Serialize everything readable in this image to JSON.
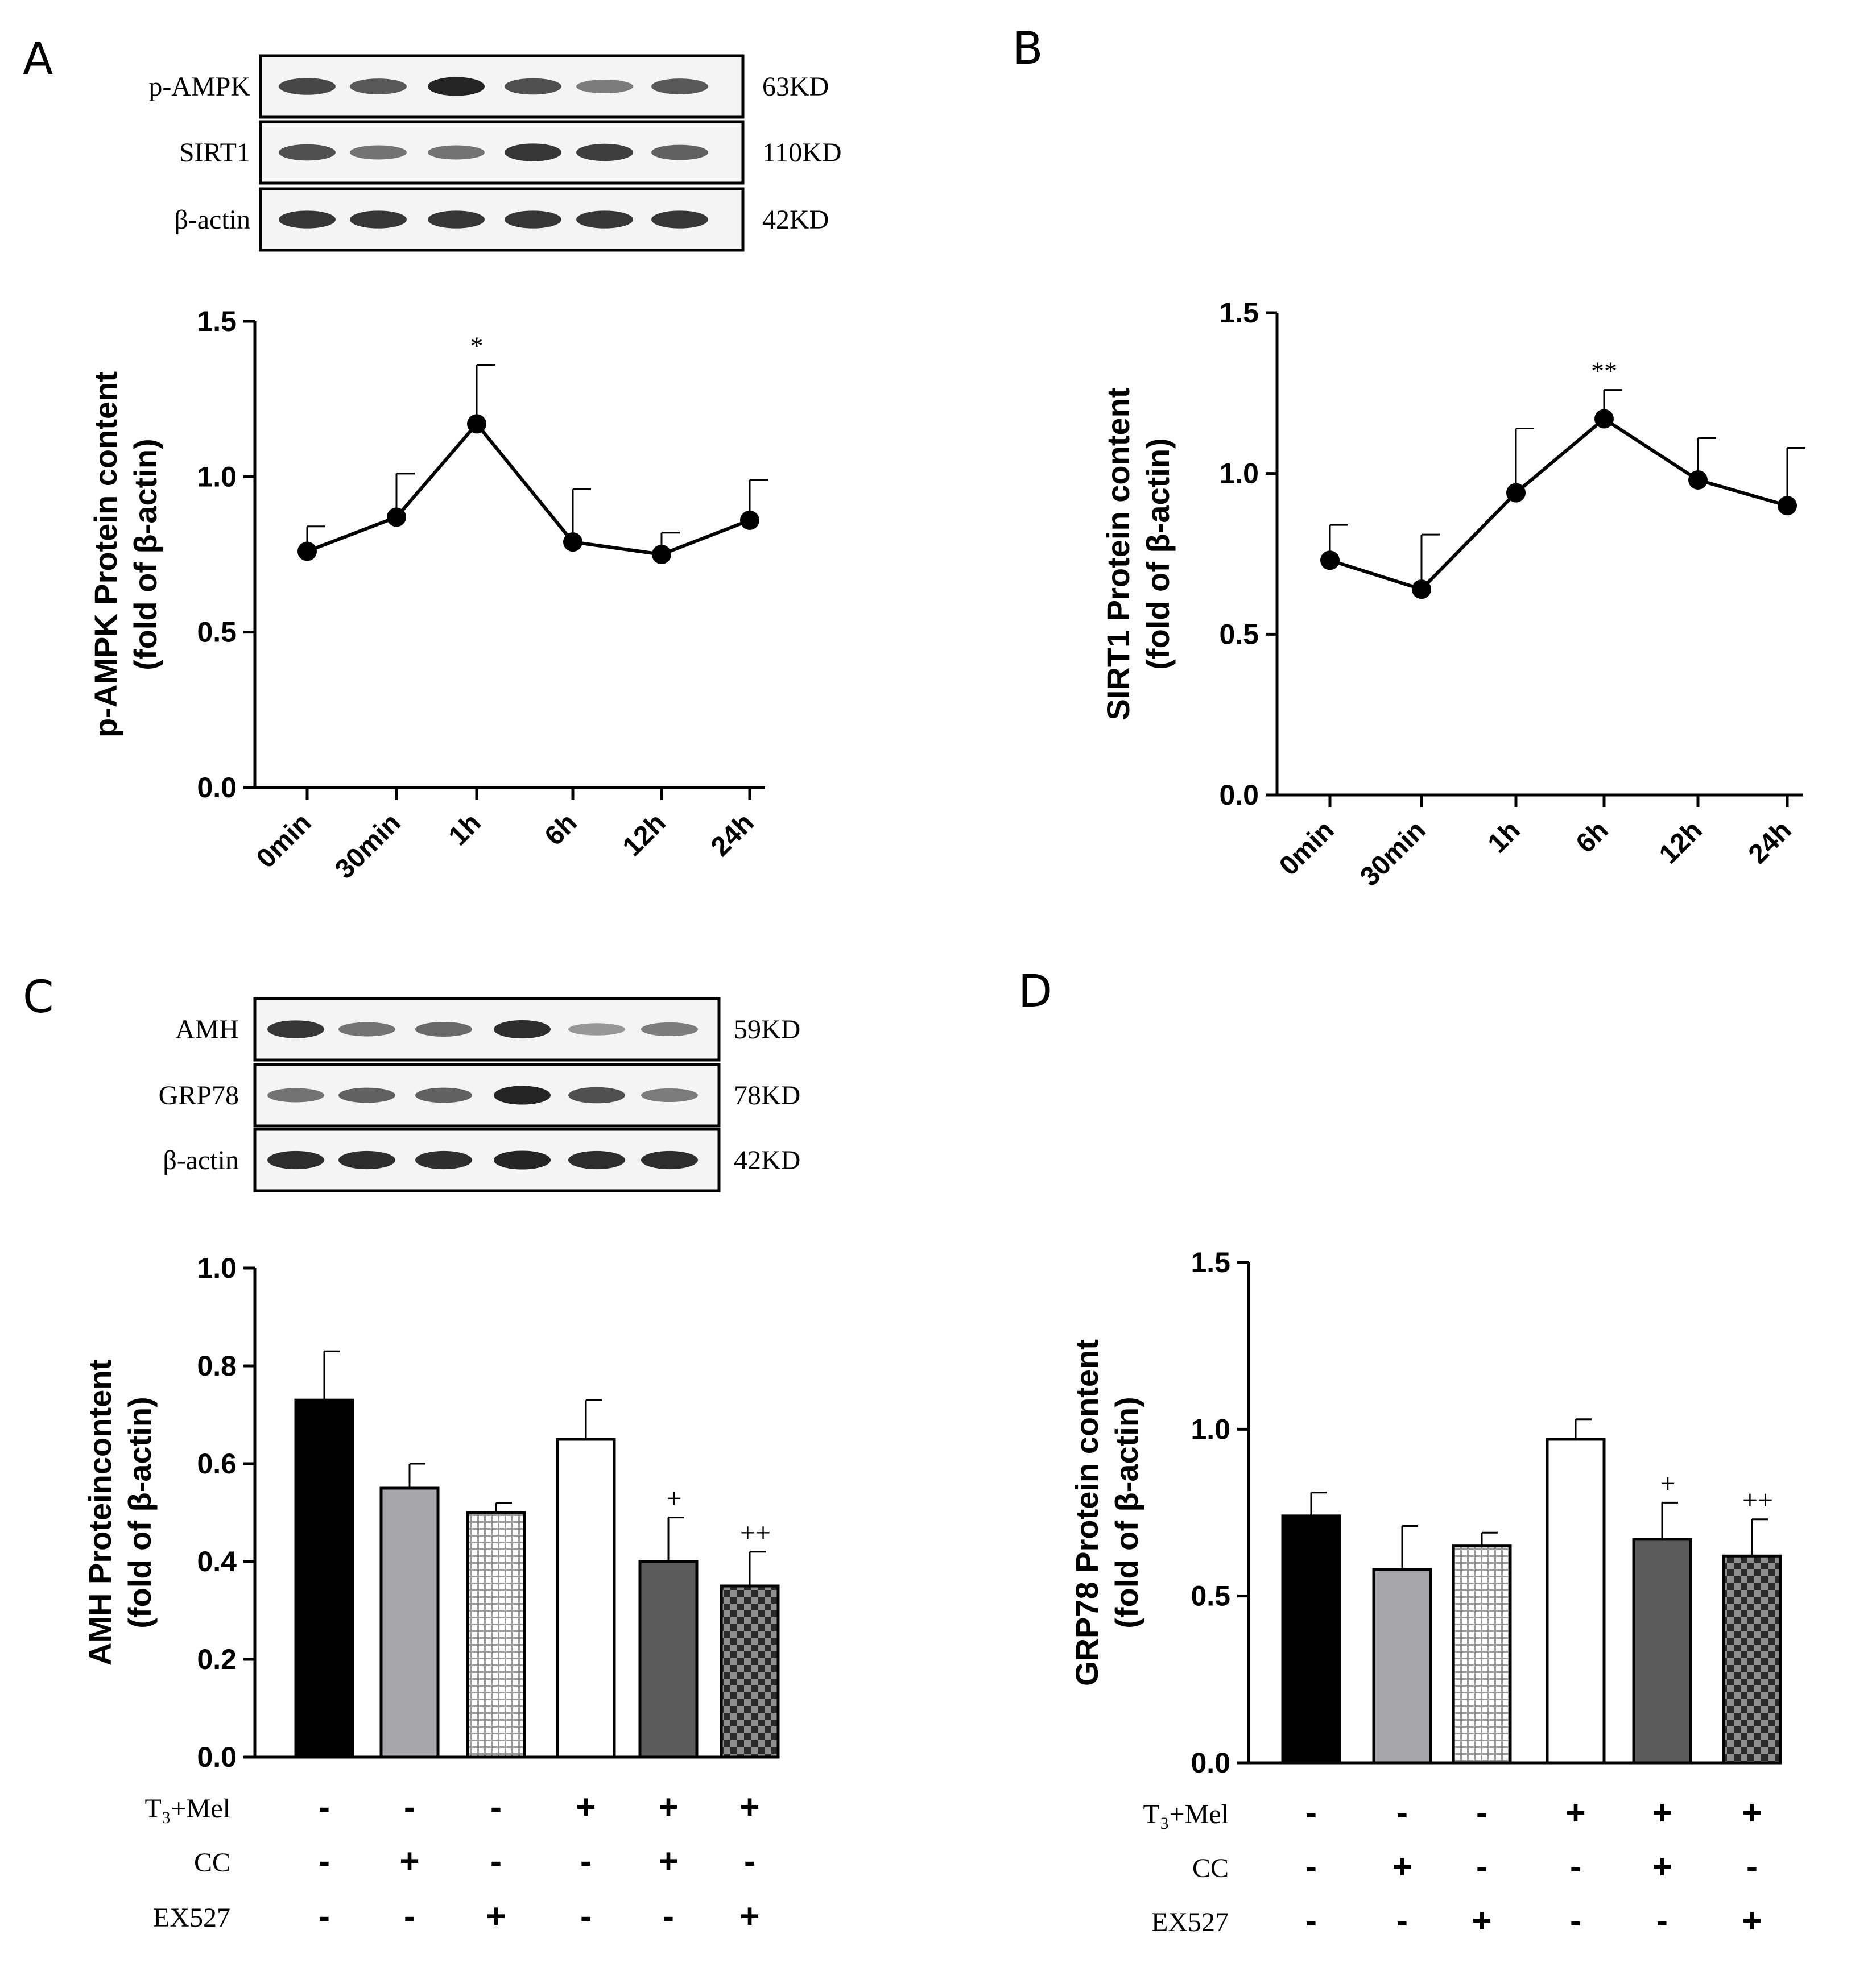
{
  "colors": {
    "black": "#000000",
    "gray": "#a7a7ab",
    "dark_gray": "#5b5b5b",
    "white": "#ffffff",
    "blot_bg": "#f4f4f4",
    "blot_band": "#1a1a1a"
  },
  "panels": {
    "A": "A",
    "B": "B",
    "C": "C",
    "D": "D"
  },
  "blots": [
    {
      "id": "A",
      "rows": [
        {
          "label": "p-AMPK",
          "kd": "63KD",
          "intensity": [
            0.75,
            0.65,
            0.95,
            0.7,
            0.45,
            0.65
          ]
        },
        {
          "label": "SIRT1",
          "kd": "110KD",
          "intensity": [
            0.7,
            0.5,
            0.5,
            0.85,
            0.8,
            0.6
          ]
        },
        {
          "label": "β-actin",
          "kd": "42KD",
          "intensity": [
            0.85,
            0.85,
            0.85,
            0.85,
            0.85,
            0.85
          ]
        }
      ]
    },
    {
      "id": "C",
      "rows": [
        {
          "label": "AMH",
          "kd": "59KD",
          "intensity": [
            0.85,
            0.5,
            0.55,
            0.9,
            0.3,
            0.45
          ]
        },
        {
          "label": "GRP78",
          "kd": "78KD",
          "intensity": [
            0.5,
            0.6,
            0.6,
            0.95,
            0.7,
            0.45
          ]
        },
        {
          "label": "β-actin",
          "kd": "42KD",
          "intensity": [
            0.9,
            0.9,
            0.9,
            0.95,
            0.9,
            0.9
          ]
        }
      ]
    }
  ],
  "chart_data": [
    {
      "id": "A",
      "type": "line",
      "categories": [
        "0min",
        "30min",
        "1h",
        "6h",
        "12h",
        "24h"
      ],
      "values": [
        0.76,
        0.87,
        1.17,
        0.79,
        0.75,
        0.86
      ],
      "errors": [
        0.08,
        0.14,
        0.19,
        0.17,
        0.07,
        0.13
      ],
      "annotations": [
        "",
        "",
        "*",
        "",
        "",
        ""
      ],
      "ylim": [
        0,
        1.5
      ],
      "yticks": [
        "0.0",
        "0.5",
        "1.0",
        "1.5"
      ],
      "ylabel": "p-AMPK Protein content",
      "ylabel2": "(fold of β-actin)"
    },
    {
      "id": "B",
      "type": "line",
      "categories": [
        "0min",
        "30min",
        "1h",
        "6h",
        "12h",
        "24h"
      ],
      "values": [
        0.73,
        0.64,
        0.94,
        1.17,
        0.98,
        0.9
      ],
      "errors": [
        0.11,
        0.17,
        0.2,
        0.09,
        0.13,
        0.18
      ],
      "annotations": [
        "",
        "",
        "",
        "**",
        "",
        ""
      ],
      "ylim": [
        0,
        1.5
      ],
      "yticks": [
        "0.0",
        "0.5",
        "1.0",
        "1.5"
      ],
      "ylabel": "SIRT1 Protein content",
      "ylabel2": "(fold of β-actin)"
    },
    {
      "id": "C",
      "type": "bar",
      "values": [
        0.73,
        0.55,
        0.5,
        0.65,
        0.4,
        0.35
      ],
      "errors": [
        0.1,
        0.05,
        0.02,
        0.08,
        0.09,
        0.07
      ],
      "annotations": [
        "",
        "",
        "",
        "",
        "+",
        "++"
      ],
      "ylim": [
        0,
        1.0
      ],
      "yticks": [
        "0.0",
        "0.2",
        "0.4",
        "0.6",
        "0.8",
        "1.0"
      ],
      "ylabel": "AMH Proteincontent",
      "ylabel2": "(fold of β-actin)",
      "treatments": [
        {
          "label": "T₃+Mel",
          "signs": [
            "-",
            "-",
            "-",
            "+",
            "+",
            "+"
          ]
        },
        {
          "label": "CC",
          "signs": [
            "-",
            "+",
            "-",
            "-",
            "+",
            "-"
          ]
        },
        {
          "label": "EX527",
          "signs": [
            "-",
            "-",
            "+",
            "-",
            "-",
            "+"
          ]
        }
      ]
    },
    {
      "id": "D",
      "type": "bar",
      "values": [
        0.74,
        0.58,
        0.65,
        0.97,
        0.67,
        0.62
      ],
      "errors": [
        0.07,
        0.13,
        0.04,
        0.06,
        0.11,
        0.11
      ],
      "annotations": [
        "",
        "",
        "",
        "",
        "+",
        "++"
      ],
      "ylim": [
        0,
        1.5
      ],
      "yticks": [
        "0.0",
        "0.5",
        "1.0",
        "1.5"
      ],
      "ylabel": "GRP78 Protein content",
      "ylabel2": "(fold of β-actin)",
      "treatments": [
        {
          "label": "T₃+Mel",
          "signs": [
            "-",
            "-",
            "-",
            "+",
            "+",
            "+"
          ]
        },
        {
          "label": "CC",
          "signs": [
            "-",
            "+",
            "-",
            "-",
            "+",
            "-"
          ]
        },
        {
          "label": "EX527",
          "signs": [
            "-",
            "-",
            "+",
            "-",
            "-",
            "+"
          ]
        }
      ]
    }
  ]
}
